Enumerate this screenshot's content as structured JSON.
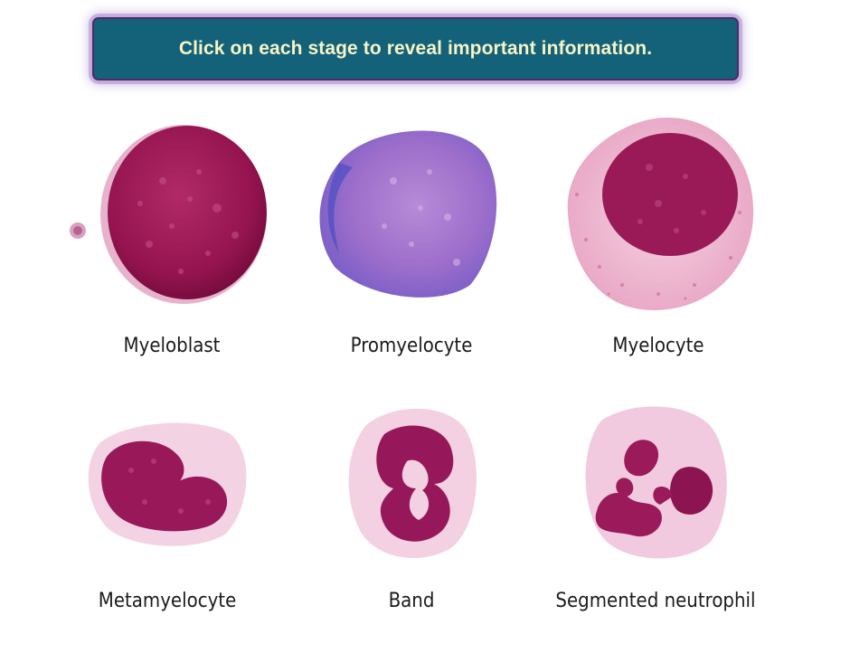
{
  "instruction": {
    "text": "Click on each stage to reveal important information."
  },
  "stages": [
    {
      "label": "Myeloblast"
    },
    {
      "label": "Promyelocyte"
    },
    {
      "label": "Myelocyte"
    },
    {
      "label": "Metamyelocyte"
    },
    {
      "label": "Band"
    },
    {
      "label": "Segmented neutrophil"
    }
  ],
  "colors": {
    "banner_bg": "#13627a",
    "banner_border": "#4e2a68",
    "banner_text": "#f6f3c6",
    "nucleus_stain": "#93164f",
    "cytoplasm_pink": "#f4cde0",
    "granule_blue": "#6f5fc6"
  }
}
